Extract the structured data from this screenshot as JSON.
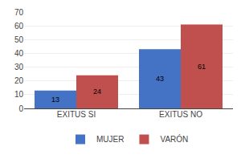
{
  "chart_data": {
    "type": "bar",
    "categories": [
      "EXITUS SI",
      "EXITUS NO"
    ],
    "series": [
      {
        "name": "MUJER",
        "color": "#4472C4",
        "values": [
          13,
          43
        ]
      },
      {
        "name": "VARÓN",
        "color": "#C0504D",
        "values": [
          24,
          61
        ]
      }
    ],
    "ylim": [
      0,
      70
    ],
    "yticks": [
      0,
      10,
      20,
      30,
      40,
      50,
      60,
      70
    ],
    "grid": true,
    "data_labels": true,
    "legend": "bottom"
  }
}
